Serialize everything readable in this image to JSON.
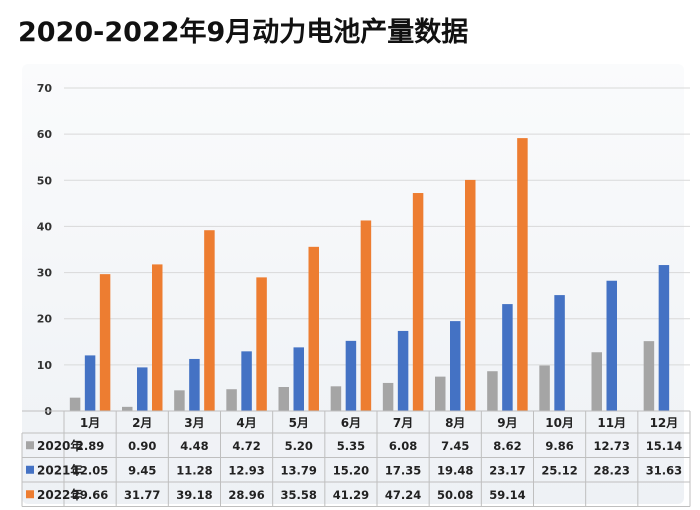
{
  "title": "2020-2022年9月动力电池产量数据",
  "chart_data": {
    "type": "bar",
    "title": "2020-2022年9月动力电池产量数据",
    "categories": [
      "1月",
      "2月",
      "3月",
      "4月",
      "5月",
      "6月",
      "7月",
      "8月",
      "9月",
      "10月",
      "11月",
      "12月"
    ],
    "yticks": [
      0,
      10,
      20,
      30,
      40,
      50,
      60,
      70
    ],
    "ylim": [
      0,
      70
    ],
    "grid": true,
    "legend": "data-table",
    "series": [
      {
        "name": "2020年",
        "color": "#a5a5a5",
        "values": [
          2.89,
          0.9,
          4.48,
          4.72,
          5.2,
          5.35,
          6.08,
          7.45,
          8.62,
          9.86,
          12.73,
          15.14
        ],
        "labels": [
          "2.89",
          "0.90",
          "4.48",
          "4.72",
          "5.20",
          "5.35",
          "6.08",
          "7.45",
          "8.62",
          "9.86",
          "12.73",
          "15.14"
        ]
      },
      {
        "name": "2021年",
        "color": "#4472c4",
        "values": [
          12.05,
          9.45,
          11.28,
          12.93,
          13.79,
          15.2,
          17.35,
          19.48,
          23.17,
          25.12,
          28.23,
          31.63
        ],
        "labels": [
          "12.05",
          "9.45",
          "11.28",
          "12.93",
          "13.79",
          "15.20",
          "17.35",
          "19.48",
          "23.17",
          "25.12",
          "28.23",
          "31.63"
        ]
      },
      {
        "name": "2022年",
        "color": "#ed7d31",
        "values": [
          29.66,
          31.77,
          39.18,
          28.96,
          35.58,
          41.29,
          47.24,
          50.08,
          59.14,
          null,
          null,
          null
        ],
        "labels": [
          "29.66",
          "31.77",
          "39.18",
          "28.96",
          "35.58",
          "41.29",
          "47.24",
          "50.08",
          "59.14",
          "",
          "",
          ""
        ]
      }
    ]
  }
}
